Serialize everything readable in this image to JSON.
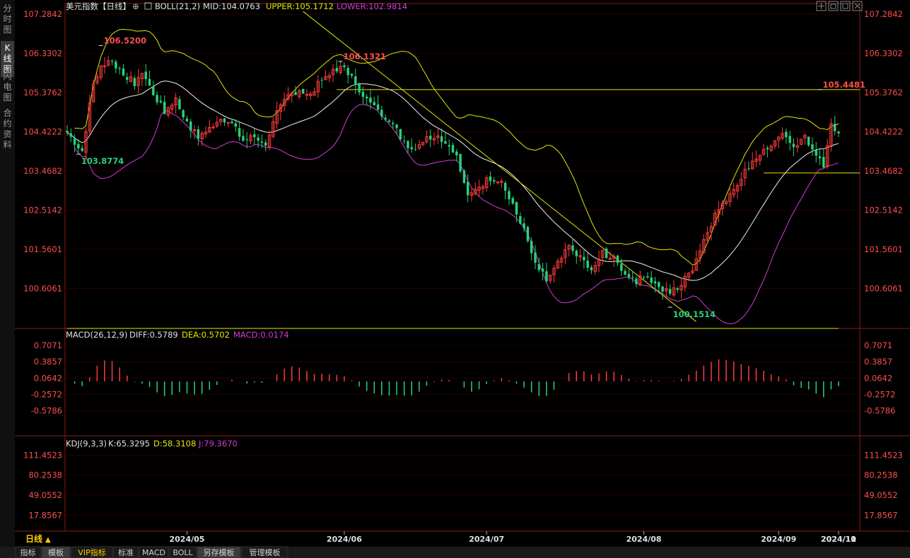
{
  "app": {
    "side_tabs": [
      "分时图",
      "K线图",
      "闪电图",
      "合约资料"
    ],
    "active_side_tab": 1,
    "bottom_tabs": [
      "指标",
      "模板",
      "VIP指标",
      "标准",
      "MACD",
      "BOLL",
      "另存模板",
      "管理模板"
    ],
    "active_bottom_tab": 1,
    "period_label": "日线",
    "toolbar_icons": [
      "crosshair-icon",
      "restore-icon",
      "maximize-icon",
      "close-icon"
    ]
  },
  "header": {
    "title": "美元指数【日线】",
    "boll": "BOLL(21,2)",
    "mid": "MID:104.0763",
    "upper": "UPPER:105.1712",
    "lower": "LOWER:102.9814"
  },
  "macd_header": {
    "name": "MACD(26,12,9)",
    "diff": "DIFF:0.5789",
    "dea": "DEA:0.5702",
    "macd": "MACD:0.0174"
  },
  "kdj_header": {
    "name": "KDJ(9,3,3)",
    "k": "K:65.3295",
    "d": "D:58.3108",
    "j": "J:79.3670"
  },
  "colors": {
    "up": "#ff3b3b",
    "down": "#28d17c",
    "mid": "#f0f0f0",
    "upper": "#e6e600",
    "lower": "#d23cd2",
    "axis_label": "#ff4d4d",
    "grid": "#2a0000",
    "frame": "#8b1a1a",
    "trend": "#e6e600",
    "diff": "#f0f0f0",
    "dea": "#e6e600",
    "k": "#f0f0f0",
    "d": "#e6e600",
    "j": "#d23cd2"
  },
  "chart_data": [
    {
      "type": "candlestick",
      "title": "美元指数【日线】",
      "x_labels": [
        "2024/05",
        "2024/06",
        "2024/07",
        "2024/08",
        "2024/09",
        "2024/10",
        "2024/11"
      ],
      "ylim": [
        100.1514,
        107.2842
      ],
      "y_ticks": [
        "107.2842",
        "106.3302",
        "105.3762",
        "104.4222",
        "103.4682",
        "102.5142",
        "101.5601",
        "100.6061"
      ],
      "annotations": [
        {
          "label": "106.5200",
          "kind": "high"
        },
        {
          "label": "103.8774",
          "kind": "low"
        },
        {
          "label": "106.1321",
          "kind": "high"
        },
        {
          "label": "100.1514",
          "kind": "low"
        },
        {
          "label": "105.4481",
          "kind": "high"
        }
      ],
      "horizontal_lines": [
        105.448,
        103.42
      ],
      "boll_last": {
        "mid": 104.0763,
        "upper": 105.1712,
        "lower": 102.9814
      },
      "close_waypoints": [
        [
          0,
          104.4
        ],
        [
          4,
          103.95
        ],
        [
          7,
          105.6
        ],
        [
          9,
          106.0
        ],
        [
          11,
          106.2
        ],
        [
          15,
          105.85
        ],
        [
          18,
          105.6
        ],
        [
          20,
          105.9
        ],
        [
          23,
          105.35
        ],
        [
          26,
          104.9
        ],
        [
          29,
          105.2
        ],
        [
          32,
          104.6
        ],
        [
          35,
          104.3
        ],
        [
          38,
          104.5
        ],
        [
          41,
          104.8
        ],
        [
          44,
          104.6
        ],
        [
          47,
          104.2
        ],
        [
          50,
          104.3
        ],
        [
          53,
          104.15
        ],
        [
          56,
          104.85
        ],
        [
          59,
          105.3
        ],
        [
          62,
          105.45
        ],
        [
          65,
          105.3
        ],
        [
          68,
          105.7
        ],
        [
          71,
          105.85
        ],
        [
          74,
          106.0
        ],
        [
          77,
          105.6
        ],
        [
          80,
          105.2
        ],
        [
          83,
          104.9
        ],
        [
          86,
          104.75
        ],
        [
          89,
          104.3
        ],
        [
          92,
          104.0
        ],
        [
          95,
          104.2
        ],
        [
          98,
          104.35
        ],
        [
          101,
          104.2
        ],
        [
          104,
          103.8
        ],
        [
          107,
          102.8
        ],
        [
          110,
          103.1
        ],
        [
          113,
          103.3
        ],
        [
          116,
          103.2
        ],
        [
          119,
          102.6
        ],
        [
          122,
          102.0
        ],
        [
          125,
          101.2
        ],
        [
          128,
          100.8
        ],
        [
          131,
          101.2
        ],
        [
          134,
          101.6
        ],
        [
          137,
          101.4
        ],
        [
          140,
          101.0
        ],
        [
          143,
          101.5
        ],
        [
          146,
          101.3
        ],
        [
          149,
          101.0
        ],
        [
          152,
          100.8
        ],
        [
          155,
          100.9
        ],
        [
          158,
          100.6
        ],
        [
          161,
          100.5
        ],
        [
          164,
          100.7
        ],
        [
          167,
          101.1
        ],
        [
          170,
          101.8
        ],
        [
          173,
          102.4
        ],
        [
          176,
          102.8
        ],
        [
          179,
          103.2
        ],
        [
          182,
          103.6
        ],
        [
          185,
          103.9
        ],
        [
          188,
          104.05
        ],
        [
          191,
          104.3
        ],
        [
          194,
          104.1
        ],
        [
          197,
          104.25
        ],
        [
          200,
          103.9
        ],
        [
          202,
          103.5
        ],
        [
          204,
          104.6
        ],
        [
          205,
          104.4
        ],
        [
          206,
          104.3
        ]
      ],
      "visible_count": 207
    },
    {
      "type": "macd",
      "ylim": [
        -0.92,
        0.82
      ],
      "y_ticks": [
        "0.7071",
        "0.3857",
        "0.0642",
        "-0.2572",
        "-0.5786"
      ],
      "series": [
        {
          "name": "DIFF",
          "last": 0.5789
        },
        {
          "name": "DEA",
          "last": 0.5702
        },
        {
          "name": "MACD",
          "last": 0.0174
        }
      ]
    },
    {
      "type": "kdj",
      "ylim": [
        -5,
        125
      ],
      "y_ticks": [
        "111.4523",
        "80.2538",
        "49.0552",
        "17.8567"
      ],
      "series": [
        {
          "name": "K",
          "last": 65.3295
        },
        {
          "name": "D",
          "last": 58.3108
        },
        {
          "name": "J",
          "last": 79.367
        }
      ]
    }
  ]
}
